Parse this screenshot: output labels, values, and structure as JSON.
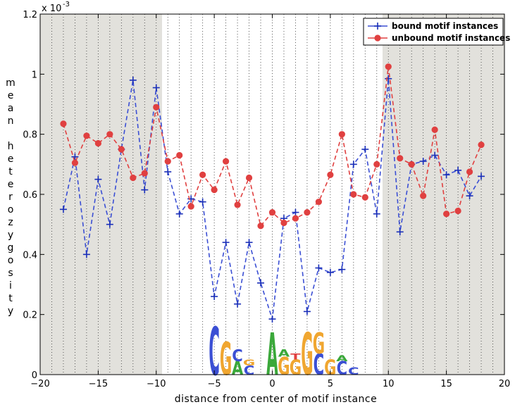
{
  "chart_data": {
    "type": "line",
    "title": "",
    "xlabel": "distance from center of motif instance",
    "ylabel": "mean heterozygosity",
    "y_exponent_label": "x 10",
    "y_exponent_power": "-3",
    "xlim": [
      -20,
      20
    ],
    "ylim": [
      0,
      1.2
    ],
    "x_ticks": [
      -20,
      -15,
      -10,
      -5,
      0,
      5,
      10,
      15,
      20
    ],
    "x_tick_labels": [
      "−20",
      "−15",
      "−10",
      "−5",
      "0",
      "5",
      "10",
      "15",
      "20"
    ],
    "y_ticks": [
      0,
      0.2,
      0.4,
      0.6,
      0.8,
      1,
      1.2
    ],
    "y_tick_labels": [
      "0",
      "0.2",
      "0.4",
      "0.6",
      "0.8",
      "1",
      "1.2"
    ],
    "shaded_regions": [
      [
        -20,
        -9.5
      ],
      [
        9.5,
        20
      ]
    ],
    "motif_region": [
      -9.5,
      9.5
    ],
    "legend_position": "top-right",
    "x": [
      -18,
      -17,
      -16,
      -15,
      -14,
      -13,
      -12,
      -11,
      -10,
      -9,
      -8,
      -7,
      -6,
      -5,
      -4,
      -3,
      -2,
      -1,
      0,
      1,
      2,
      3,
      4,
      5,
      6,
      7,
      8,
      9,
      10,
      11,
      12,
      13,
      14,
      15,
      16,
      17,
      18
    ],
    "series": [
      {
        "name": "bound motif instances",
        "color": "#3b4fd4",
        "marker": "plus",
        "values": [
          0.55,
          0.725,
          0.4,
          0.65,
          0.5,
          0.75,
          0.98,
          0.615,
          0.955,
          0.675,
          0.535,
          0.585,
          0.575,
          0.26,
          0.44,
          0.235,
          0.44,
          0.305,
          0.185,
          0.52,
          0.54,
          0.21,
          0.355,
          0.34,
          0.35,
          0.7,
          0.75,
          0.535,
          0.985,
          0.475,
          0.7,
          0.71,
          0.73,
          0.665,
          0.68,
          0.595,
          0.66
        ]
      },
      {
        "name": "unbound motif instances",
        "color": "#e04040",
        "marker": "circle",
        "values": [
          0.835,
          0.705,
          0.795,
          0.77,
          0.8,
          0.75,
          0.655,
          0.67,
          0.89,
          0.71,
          0.73,
          0.56,
          0.665,
          0.615,
          0.71,
          0.565,
          0.655,
          0.495,
          0.54,
          0.505,
          0.52,
          0.54,
          0.575,
          0.665,
          0.8,
          0.6,
          0.59,
          0.7,
          1.025,
          0.72,
          0.7,
          0.595,
          0.815,
          0.535,
          0.545,
          0.675,
          0.765
        ]
      }
    ]
  },
  "motif_logo": {
    "letters": [
      {
        "pos": -5,
        "char": "C",
        "height": 0.16,
        "color": "#3b4fd4"
      },
      {
        "pos": -4,
        "char": "G",
        "height": 0.11,
        "color": "#f0a630"
      },
      {
        "pos": -3,
        "char": "A",
        "height": 0.045,
        "color": "#3aa83a"
      },
      {
        "pos": -3,
        "char": "C",
        "height": 0.04,
        "color": "#3b4fd4"
      },
      {
        "pos": -2,
        "char": "C",
        "height": 0.03,
        "color": "#3b4fd4"
      },
      {
        "pos": -2,
        "char": "G",
        "height": 0.02,
        "color": "#f0a630"
      },
      {
        "pos": 0,
        "char": "A",
        "height": 0.14,
        "color": "#3aa83a"
      },
      {
        "pos": 1,
        "char": "G",
        "height": 0.06,
        "color": "#f0a630"
      },
      {
        "pos": 1,
        "char": "A",
        "height": 0.025,
        "color": "#3aa83a"
      },
      {
        "pos": 2,
        "char": "G",
        "height": 0.05,
        "color": "#f0a630"
      },
      {
        "pos": 2,
        "char": "T",
        "height": 0.02,
        "color": "#e04040"
      },
      {
        "pos": 3,
        "char": "G",
        "height": 0.14,
        "color": "#f0a630"
      },
      {
        "pos": 4,
        "char": "C",
        "height": 0.07,
        "color": "#3b4fd4"
      },
      {
        "pos": 4,
        "char": "G",
        "height": 0.07,
        "color": "#f0a630"
      },
      {
        "pos": 5,
        "char": "G",
        "height": 0.05,
        "color": "#f0a630"
      },
      {
        "pos": 6,
        "char": "C",
        "height": 0.045,
        "color": "#3b4fd4"
      },
      {
        "pos": 6,
        "char": "A",
        "height": 0.02,
        "color": "#3aa83a"
      },
      {
        "pos": 7,
        "char": "C",
        "height": 0.025,
        "color": "#3b4fd4"
      }
    ]
  }
}
